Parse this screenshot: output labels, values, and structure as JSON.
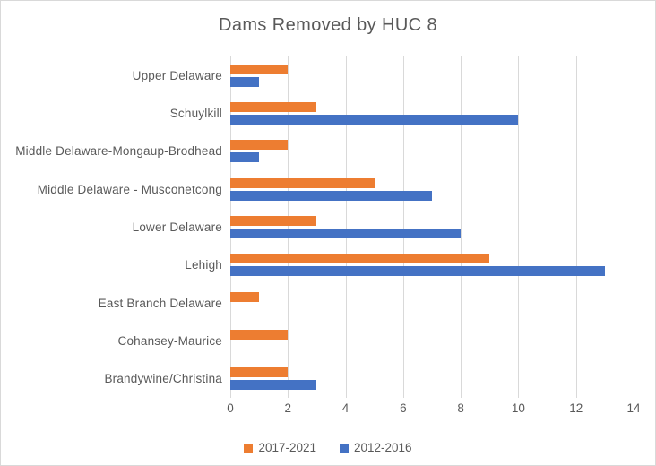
{
  "chart_data": {
    "type": "bar",
    "orientation": "horizontal",
    "title": "Dams Removed by HUC 8",
    "categories": [
      "Upper Delaware",
      "Schuylkill",
      "Middle Delaware-Mongaup-Brodhead",
      "Middle Delaware - Musconetcong",
      "Lower Delaware",
      "Lehigh",
      "East Branch Delaware",
      "Cohansey-Maurice",
      "Brandywine/Christina"
    ],
    "series": [
      {
        "name": "2017-2021",
        "color": "#ED7D31",
        "values": [
          2,
          3,
          2,
          5,
          3,
          9,
          1,
          2,
          2
        ]
      },
      {
        "name": "2012-2016",
        "color": "#4472C4",
        "values": [
          1,
          10,
          1,
          7,
          8,
          13,
          0,
          0,
          3
        ]
      }
    ],
    "xlabel": "",
    "ylabel": "",
    "xlim": [
      0,
      14
    ],
    "xticks": [
      0,
      2,
      4,
      6,
      8,
      10,
      12,
      14
    ],
    "grid": true,
    "legend_position": "bottom",
    "colors": {
      "text": "#595959",
      "gridline": "#D9D9D9",
      "background": "#FFFFFF",
      "border": "#D9D9D9"
    }
  }
}
